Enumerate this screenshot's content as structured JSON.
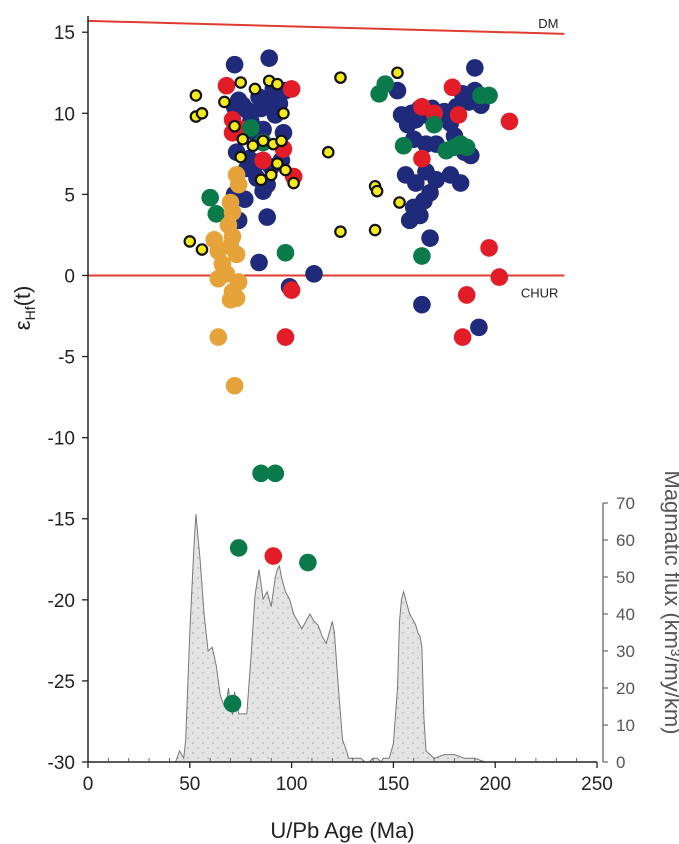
{
  "chart_data": {
    "type": "scatter",
    "xlabel": "U/Pb Age (Ma)",
    "ylabel_main": "ε",
    "ylabel_sub": "Hf",
    "ylabel_suffix": "(t)",
    "xlim": [
      0,
      250
    ],
    "ylim": [
      -30,
      16
    ],
    "xticks": [
      0,
      50,
      100,
      150,
      200,
      250
    ],
    "yticks": [
      15,
      10,
      5,
      0,
      -5,
      -10,
      -15,
      -20,
      -25,
      -30
    ],
    "grid": false,
    "reference_lines": [
      {
        "label": "DM",
        "x": [
          0,
          234
        ],
        "y": [
          15.7,
          14.9
        ],
        "color": "#e03c31"
      },
      {
        "label": "CHUR",
        "x": [
          0,
          234
        ],
        "y": [
          0,
          0
        ],
        "color": "#e03c31"
      }
    ],
    "colors": {
      "navy": "#1f2a7a",
      "red": "#e21d27",
      "green": "#0b7a4a",
      "orange": "#e6a33a",
      "yellow": "#f4ea1c",
      "flux_fill": "#e4e4e4",
      "flux_stroke": "#777777"
    },
    "series": [
      {
        "color_key": "navy",
        "marker": "filled",
        "points": [
          [
            72,
            13
          ],
          [
            89,
            13.4
          ],
          [
            190,
            12.8
          ],
          [
            74,
            10.8
          ],
          [
            72,
            10.4
          ],
          [
            76,
            10.5
          ],
          [
            78,
            10.2
          ],
          [
            80,
            9.5
          ],
          [
            84,
            11
          ],
          [
            85,
            10.3
          ],
          [
            88,
            10.7
          ],
          [
            91,
            11.5
          ],
          [
            94,
            10.6
          ],
          [
            97,
            11.4
          ],
          [
            75,
            9.0
          ],
          [
            82,
            8.8
          ],
          [
            86,
            9.0
          ],
          [
            92,
            9.9
          ],
          [
            96,
            8.8
          ],
          [
            73,
            7.6
          ],
          [
            79,
            7.2
          ],
          [
            84,
            7.0
          ],
          [
            90,
            6.7
          ],
          [
            95,
            7.1
          ],
          [
            78,
            6.6
          ],
          [
            83,
            6.0
          ],
          [
            88,
            5.6
          ],
          [
            72,
            5.0
          ],
          [
            77,
            4.7
          ],
          [
            86,
            5.2
          ],
          [
            88,
            3.6
          ],
          [
            74,
            3.4
          ],
          [
            84,
            0.8
          ],
          [
            99,
            -0.7
          ],
          [
            111,
            0.1
          ],
          [
            152,
            11.4
          ],
          [
            154,
            9.9
          ],
          [
            157,
            9.3
          ],
          [
            159,
            10.0
          ],
          [
            161,
            9.6
          ],
          [
            163,
            10.3
          ],
          [
            166,
            9.9
          ],
          [
            169,
            10.3
          ],
          [
            172,
            9.6
          ],
          [
            175,
            10.1
          ],
          [
            178,
            9.4
          ],
          [
            181,
            10.4
          ],
          [
            184,
            11.2
          ],
          [
            187,
            10.7
          ],
          [
            190,
            11.4
          ],
          [
            193,
            10.5
          ],
          [
            160,
            8.4
          ],
          [
            166,
            8.1
          ],
          [
            171,
            8.1
          ],
          [
            176,
            7.7
          ],
          [
            180,
            8.6
          ],
          [
            185,
            7.6
          ],
          [
            188,
            7.4
          ],
          [
            156,
            6.2
          ],
          [
            161,
            5.7
          ],
          [
            166,
            6.4
          ],
          [
            171,
            5.9
          ],
          [
            178,
            6.2
          ],
          [
            183,
            5.7
          ],
          [
            160,
            4.2
          ],
          [
            165,
            4.6
          ],
          [
            168,
            5.1
          ],
          [
            163,
            3.7
          ],
          [
            158,
            3.4
          ],
          [
            168,
            2.3
          ],
          [
            164,
            -1.8
          ],
          [
            192,
            -3.2
          ]
        ]
      },
      {
        "color_key": "red",
        "marker": "filled",
        "points": [
          [
            68,
            11.7
          ],
          [
            71,
            9.6
          ],
          [
            71,
            8.8
          ],
          [
            76,
            9.0
          ],
          [
            86,
            7.1
          ],
          [
            96,
            7.8
          ],
          [
            100,
            11.5
          ],
          [
            101,
            6.1
          ],
          [
            100,
            -0.9
          ],
          [
            97,
            -3.8
          ],
          [
            164,
            10.4
          ],
          [
            164,
            7.2
          ],
          [
            170,
            10.0
          ],
          [
            179,
            11.6
          ],
          [
            182,
            9.9
          ],
          [
            207,
            9.5
          ],
          [
            197,
            1.7
          ],
          [
            202,
            -0.1
          ],
          [
            186,
            -1.2
          ],
          [
            184,
            -3.8
          ],
          [
            91,
            -17.3
          ]
        ]
      },
      {
        "color_key": "green",
        "marker": "filled",
        "points": [
          [
            80,
            9.1
          ],
          [
            86,
            8.2
          ],
          [
            60,
            4.8
          ],
          [
            63,
            3.8
          ],
          [
            97,
            1.4
          ],
          [
            143,
            11.2
          ],
          [
            146,
            11.8
          ],
          [
            170,
            9.3
          ],
          [
            176,
            7.7
          ],
          [
            180,
            7.9
          ],
          [
            183,
            8.1
          ],
          [
            186,
            7.9
          ],
          [
            193,
            11.1
          ],
          [
            197,
            11.1
          ],
          [
            155,
            8.0
          ],
          [
            164,
            1.2
          ],
          [
            85,
            -12.2
          ],
          [
            92,
            -12.2
          ],
          [
            74,
            -16.8
          ],
          [
            108,
            -17.7
          ],
          [
            71,
            -26.4
          ]
        ]
      },
      {
        "color_key": "orange",
        "marker": "filled",
        "points": [
          [
            73,
            6.2
          ],
          [
            74,
            5.6
          ],
          [
            70,
            4.5
          ],
          [
            71,
            3.9
          ],
          [
            69,
            3.1
          ],
          [
            71,
            2.4
          ],
          [
            70,
            1.8
          ],
          [
            73,
            1.3
          ],
          [
            62,
            2.2
          ],
          [
            64,
            1.5
          ],
          [
            66,
            0.7
          ],
          [
            64,
            -0.2
          ],
          [
            68,
            0.1
          ],
          [
            74,
            -0.4
          ],
          [
            71,
            -1.0
          ],
          [
            73,
            -1.4
          ],
          [
            70,
            -1.5
          ],
          [
            64,
            -3.8
          ],
          [
            72,
            -6.8
          ]
        ]
      },
      {
        "color_key": "yellow",
        "marker": "ringed",
        "points": [
          [
            53,
            11.1
          ],
          [
            53,
            9.8
          ],
          [
            56,
            10.0
          ],
          [
            67,
            10.7
          ],
          [
            75,
            11.9
          ],
          [
            82,
            11.5
          ],
          [
            89,
            12
          ],
          [
            93,
            11.8
          ],
          [
            96,
            10.0
          ],
          [
            72,
            9.2
          ],
          [
            76,
            8.4
          ],
          [
            81,
            8.0
          ],
          [
            86,
            8.3
          ],
          [
            91,
            8.1
          ],
          [
            95,
            8.3
          ],
          [
            90,
            6.2
          ],
          [
            93,
            6.9
          ],
          [
            97,
            6.5
          ],
          [
            101,
            5.7
          ],
          [
            75,
            7.3
          ],
          [
            85,
            5.9
          ],
          [
            50,
            2.1
          ],
          [
            56,
            1.6
          ],
          [
            118,
            7.6
          ],
          [
            124,
            2.7
          ],
          [
            124,
            12.2
          ],
          [
            141,
            5.5
          ],
          [
            142,
            5.2
          ],
          [
            141,
            2.8
          ],
          [
            152,
            12.5
          ],
          [
            153,
            4.5
          ]
        ]
      }
    ],
    "flux": {
      "ylabel": "Magmatic flux (km³/my/km)",
      "ylim": [
        0,
        70
      ],
      "yticks": [
        0,
        10,
        20,
        30,
        40,
        50,
        60,
        70
      ],
      "x": [
        43,
        45,
        47,
        48,
        50,
        52,
        53,
        55,
        57,
        59,
        61,
        63,
        65,
        67,
        68,
        69,
        70,
        71,
        72,
        73,
        74,
        76,
        78,
        80,
        82,
        84,
        85,
        86,
        88,
        90,
        92,
        93,
        94,
        95,
        97,
        99,
        101,
        103,
        105,
        107,
        109,
        111,
        113,
        115,
        117,
        119,
        120,
        121,
        123,
        125,
        127,
        128,
        130,
        132,
        134,
        136,
        138,
        140,
        142,
        144,
        145,
        146,
        148,
        150,
        152,
        153,
        154,
        155,
        156,
        158,
        160,
        161,
        162,
        163,
        164,
        165,
        166,
        168,
        170,
        175,
        180,
        185,
        190,
        195,
        200
      ],
      "y": [
        0,
        3,
        1,
        6,
        35,
        58,
        67,
        55,
        40,
        30,
        31,
        26,
        18,
        15,
        16,
        20,
        14,
        13,
        19,
        16,
        13,
        13,
        13,
        28,
        45,
        52,
        48,
        44,
        46,
        42,
        50,
        52,
        53,
        50,
        46,
        44,
        40,
        38,
        36,
        38,
        40,
        38,
        37,
        34,
        32,
        36,
        38,
        35,
        20,
        6,
        3,
        1,
        1,
        1,
        1,
        0,
        0,
        1,
        1,
        0,
        1,
        1,
        1,
        5,
        20,
        38,
        44,
        46,
        44,
        40,
        38,
        37,
        35,
        34,
        31,
        12,
        3,
        2,
        1,
        2,
        2,
        1,
        1,
        0,
        0
      ]
    }
  }
}
